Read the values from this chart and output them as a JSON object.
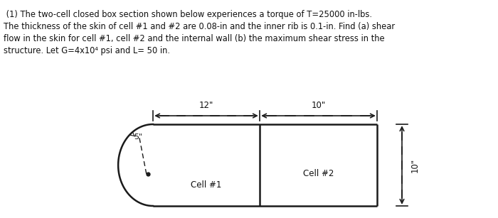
{
  "background_color": "#ffffff",
  "line1": " (1) The two-cell closed box section shown below experiences a torque of T=25000 in-lbs.",
  "line2": "The thickness of the skin of cell #1 and #2 are 0.08-in and the inner rib is 0.1-in. Find (a) shear",
  "line3": "flow in the skin for cell #1, cell #2 and the internal wall (b) the maximum shear stress in the",
  "line4": "structure. Let G=4x10⁴ psi and L= 50 in.",
  "cell1_label": "Cell #1",
  "cell2_label": "Cell #2",
  "radius_label": "5\"",
  "height_label": "10\"",
  "dim12": "12\"",
  "dim10": "10\"",
  "line_color": "#1a1a1a",
  "text_color": "#111111",
  "line_width": 1.8,
  "text_fontsize": 8.3
}
